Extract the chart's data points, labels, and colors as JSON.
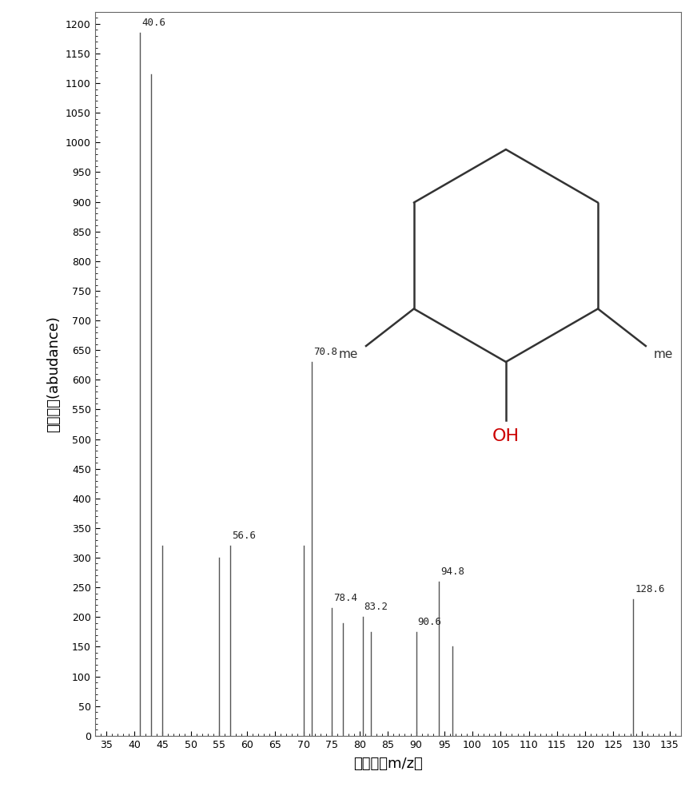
{
  "peaks": [
    {
      "mz": 41.0,
      "intensity": 1185,
      "label": "40.6"
    },
    {
      "mz": 43.0,
      "intensity": 1115,
      "label": ""
    },
    {
      "mz": 45.0,
      "intensity": 320,
      "label": ""
    },
    {
      "mz": 55.0,
      "intensity": 300,
      "label": ""
    },
    {
      "mz": 57.0,
      "intensity": 320,
      "label": "56.6"
    },
    {
      "mz": 70.0,
      "intensity": 320,
      "label": ""
    },
    {
      "mz": 71.5,
      "intensity": 630,
      "label": "70.8"
    },
    {
      "mz": 75.0,
      "intensity": 215,
      "label": "78.4"
    },
    {
      "mz": 77.0,
      "intensity": 190,
      "label": ""
    },
    {
      "mz": 80.5,
      "intensity": 200,
      "label": "83.2"
    },
    {
      "mz": 82.0,
      "intensity": 175,
      "label": ""
    },
    {
      "mz": 90.0,
      "intensity": 175,
      "label": "90.6"
    },
    {
      "mz": 94.0,
      "intensity": 260,
      "label": "94.8"
    },
    {
      "mz": 96.5,
      "intensity": 150,
      "label": ""
    },
    {
      "mz": 128.5,
      "intensity": 230,
      "label": "128.6"
    }
  ],
  "xlim": [
    33,
    137
  ],
  "ylim": [
    0,
    1220
  ],
  "xticks": [
    35,
    40,
    45,
    50,
    55,
    60,
    65,
    70,
    75,
    80,
    85,
    90,
    95,
    100,
    105,
    110,
    115,
    120,
    125,
    130,
    135
  ],
  "yticks": [
    0,
    50,
    100,
    150,
    200,
    250,
    300,
    350,
    400,
    450,
    500,
    550,
    600,
    650,
    700,
    750,
    800,
    850,
    900,
    950,
    1000,
    1050,
    1100,
    1150,
    1200
  ],
  "xlabel": "质荷比（m/z）",
  "ylabel": "相对丰度(abudance)",
  "line_color": "#555555",
  "label_color": "#222222",
  "background_color": "#ffffff",
  "molecule_color": "#333333",
  "oh_color": "#cc0000"
}
